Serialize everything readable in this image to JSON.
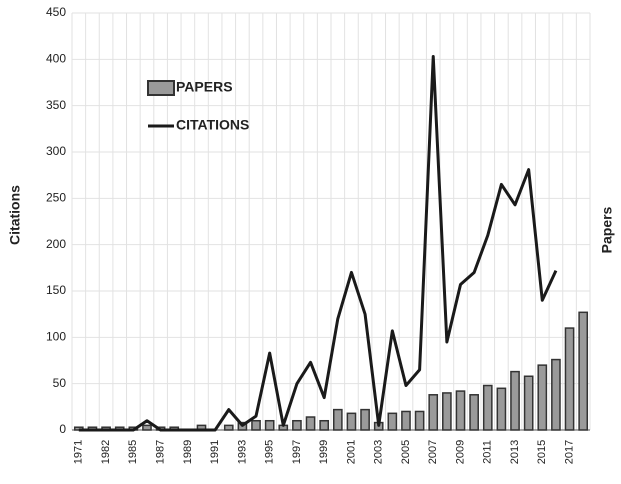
{
  "chart_data": {
    "type": "combo",
    "ylabel": "Citations",
    "y2label": "Papers",
    "categories": [
      "1971",
      null,
      "1982",
      null,
      "1985",
      null,
      "1987",
      null,
      "1989",
      null,
      "1991",
      null,
      "1993",
      null,
      "1995",
      null,
      "1997",
      null,
      "1999",
      null,
      "2001",
      null,
      "2003",
      null,
      "2005",
      null,
      "2007",
      null,
      "2009",
      null,
      "2011",
      null,
      "2013",
      null,
      "2015",
      null,
      "2017",
      null
    ],
    "series": [
      {
        "name": "PAPERS",
        "type": "bar",
        "color": "#9a9a9a",
        "values": [
          3,
          3,
          3,
          3,
          3,
          5,
          3,
          3,
          0,
          5,
          0,
          5,
          8,
          10,
          10,
          5,
          10,
          14,
          10,
          22,
          18,
          22,
          8,
          18,
          20,
          20,
          38,
          40,
          42,
          38,
          48,
          45,
          63,
          58,
          70,
          76,
          110,
          127
        ]
      },
      {
        "name": "CITATIONS",
        "type": "line",
        "color": "#1a1a1a",
        "values": [
          0,
          0,
          0,
          0,
          0,
          10,
          0,
          0,
          0,
          0,
          0,
          22,
          5,
          15,
          83,
          5,
          50,
          73,
          35,
          120,
          170,
          125,
          5,
          107,
          48,
          65,
          403,
          95,
          157,
          170,
          210,
          265,
          243,
          281,
          140,
          172,
          null,
          null
        ]
      }
    ],
    "ylim": [
      0,
      450
    ],
    "yticks": [
      0,
      50,
      100,
      150,
      200,
      250,
      300,
      350,
      400,
      450
    ],
    "grid": true
  }
}
